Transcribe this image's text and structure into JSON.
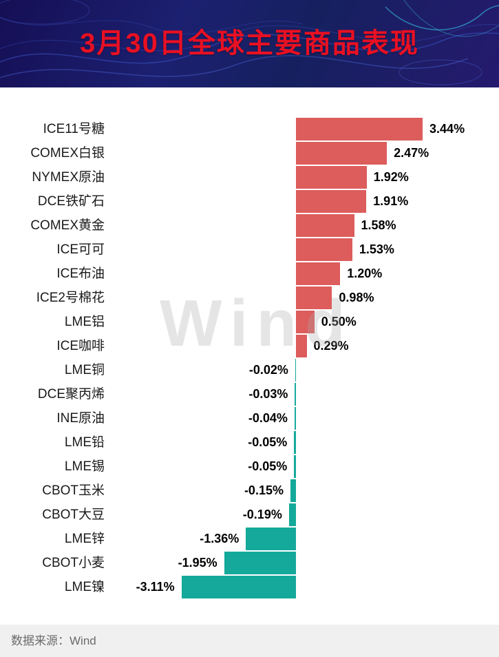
{
  "header": {
    "title": "3月30日全球主要商品表现",
    "title_color": "#e81023",
    "background_color": "#1c2070"
  },
  "watermark": {
    "text": "Wind"
  },
  "footer": {
    "source_label": "数据来源：Wind"
  },
  "chart_data": {
    "type": "bar",
    "orientation": "horizontal",
    "title": "3月30日全球主要商品表现",
    "xlabel": "",
    "ylabel": "",
    "xlim": [
      -3.5,
      3.5
    ],
    "grid": false,
    "legend": "none",
    "value_suffix": "%",
    "categories": [
      "ICE11号糖",
      "COMEX白银",
      "NYMEX原油",
      "DCE铁矿石",
      "COMEX黄金",
      "ICE可可",
      "ICE布油",
      "ICE2号棉花",
      "LME铝",
      "ICE咖啡",
      "LME铜",
      "DCE聚丙烯",
      "INE原油",
      "LME铅",
      "LME锡",
      "CBOT玉米",
      "CBOT大豆",
      "LME锌",
      "CBOT小麦",
      "LME镍"
    ],
    "values": [
      3.44,
      2.47,
      1.92,
      1.91,
      1.58,
      1.53,
      1.2,
      0.98,
      0.5,
      0.29,
      -0.02,
      -0.03,
      -0.04,
      -0.05,
      -0.05,
      -0.15,
      -0.19,
      -1.36,
      -1.95,
      -3.11
    ],
    "positive_color": "#dd5c5c",
    "negative_color": "#14a99a"
  }
}
